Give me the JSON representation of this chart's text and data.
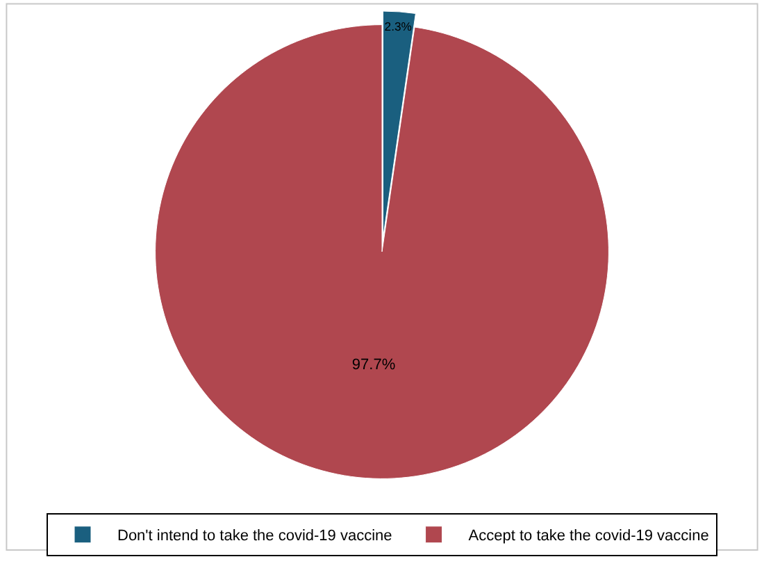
{
  "chart_data": {
    "type": "pie",
    "categories": [
      "Don't intend to take the covid-19 vaccine",
      "Accept to take the covid-19 vaccine"
    ],
    "values": [
      2.3,
      97.7
    ],
    "value_labels": [
      "2.3%",
      "97.7%"
    ],
    "colors": [
      "#1a5f7f",
      "#b0474f"
    ],
    "legend": "bottom"
  }
}
